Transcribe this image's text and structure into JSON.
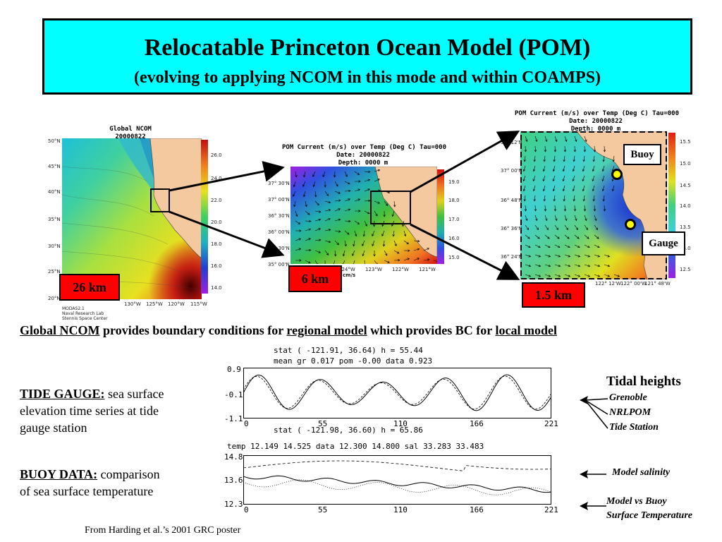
{
  "header": {
    "title": "Relocatable Princeton Ocean Model (POM)",
    "subtitle": "(evolving to applying NCOM in this mode and within COAMPS)"
  },
  "maps": {
    "global": {
      "title_line1": "Global NCOM",
      "title_line2": "20000822",
      "scale": "26 km",
      "lat_labels": [
        "50°N",
        "45°N",
        "40°N",
        "35°N",
        "30°N",
        "25°N",
        "20°N"
      ],
      "lon_labels": [
        "130°W",
        "125°W",
        "120°W",
        "115°W"
      ],
      "colorbar_ticks": [
        "26.0",
        "24.0",
        "22.0",
        "20.0",
        "18.0",
        "16.0",
        "14.0"
      ],
      "credit_line1": "MODAS2.1",
      "credit_line2": "Naval Research Lab",
      "credit_line3": "Stennis Space Center"
    },
    "regional": {
      "title_line1": "POM Current (m/s) over Temp (Deg C)  Tau=000",
      "title_line2": "Date: 20000822",
      "title_line3": "Depth: 0000 m",
      "scale": "6 km",
      "lat_labels": [
        "37° 30'N",
        "37° 00'N",
        "36° 30'N",
        "36° 00'N",
        "35° 30'N",
        "35° 00'N"
      ],
      "lon_labels": [
        "124°W",
        "123°W",
        "122°W",
        "121°W"
      ],
      "colorbar_ticks": [
        "19.0",
        "18.0",
        "17.0",
        "16.0",
        "15.0"
      ],
      "vector_unit": "cm/s"
    },
    "local": {
      "title_line1": "POM Current (m/s) over Temp (Deg C)  Tau=000",
      "title_line2": "Date: 20000822",
      "title_line3": "Depth: 0000 m",
      "scale": "1.5 km",
      "lat_labels": [
        "37° 12'N",
        "37° 00'N",
        "36° 48'N",
        "36° 36'N",
        "36° 24'N"
      ],
      "lon_labels": [
        "122° 12'W",
        "122° 00'W",
        "121° 48'W"
      ],
      "colorbar_ticks": [
        "15.5",
        "15.0",
        "14.5",
        "14.0",
        "13.5",
        "13.0",
        "12.5"
      ],
      "buoy_label": "Buoy",
      "gauge_label": "Gauge"
    }
  },
  "caption": {
    "part1": "Global NCOM",
    "part2": " provides boundary conditions for ",
    "part3": "regional model",
    "part4": " which provides BC for ",
    "part5": "local model"
  },
  "left_text": {
    "tide_heading": "TIDE GAUGE:",
    "tide_body1": " sea surface",
    "tide_body2": "elevation time series at tide",
    "tide_body3": "gauge station",
    "buoy_heading": "BUOY DATA:",
    "buoy_body1": " comparison",
    "buoy_body2": "of  sea surface temperature"
  },
  "tide_plot": {
    "header_line1": "stat  ( -121.91,   36.64)  h =    55.44",
    "header_line2": "mean gr      0.017  pom    -0.00 data     0.923",
    "y_ticks": [
      "0.9",
      "-0.1",
      "-1.1"
    ],
    "x_ticks": [
      "0",
      "55",
      "110",
      "166",
      "221"
    ]
  },
  "sst_plot": {
    "header_line1": "stat  ( -121.98,   36.60)  h =    65.86",
    "header_line2": "temp   12.149   14.525  data   12.300   14.800  sal    33.283   33.483",
    "y_ticks": [
      "14.8",
      "13.6",
      "12.3"
    ],
    "x_ticks": [
      "0",
      "55",
      "110",
      "166",
      "221"
    ]
  },
  "right_notes": {
    "tidal_title": "Tidal heights",
    "tidal_l1": "Grenoble",
    "tidal_l2": "NRLPOM",
    "tidal_l3": "Tide Station",
    "salinity": "Model salinity",
    "sst_l1": "Model vs Buoy",
    "sst_l2": "Surface Temperature"
  },
  "credit": "From Harding et al.’s 2001 GRC poster",
  "colors": {
    "title_bg": "#00ffff",
    "scale_badge": "#ff0000",
    "marker": "#ffff00",
    "land": "#f5c9a0"
  }
}
